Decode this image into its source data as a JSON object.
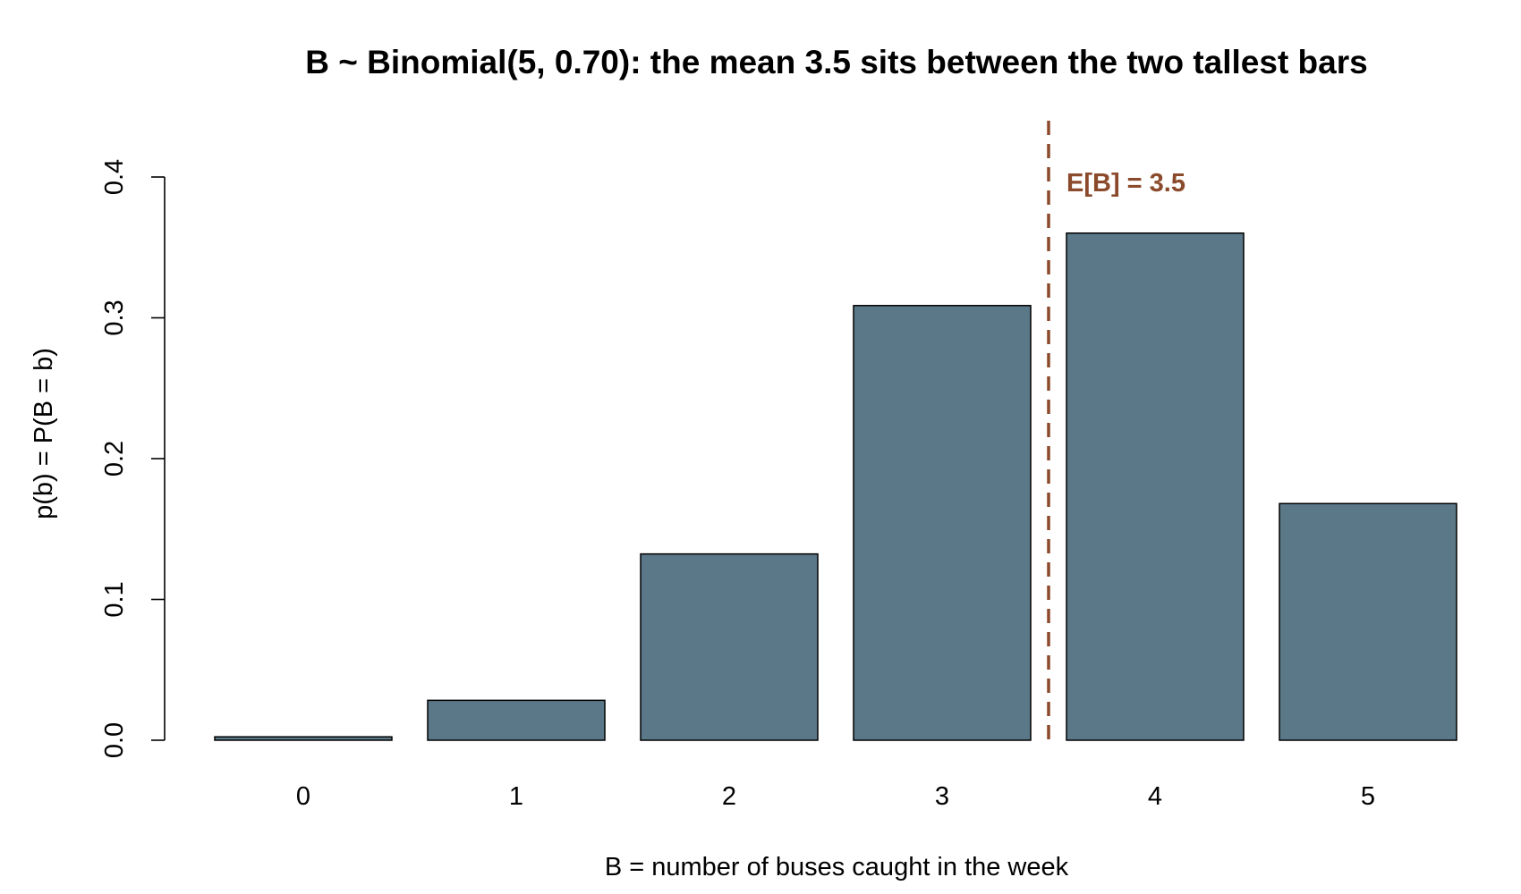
{
  "chart_data": {
    "type": "bar",
    "title": "B ~ Binomial(5, 0.70): the mean 3.5 sits between the two tallest bars",
    "xlabel": "B = number of buses caught in the week",
    "ylabel": "p(b) = P(B = b)",
    "categories": [
      "0",
      "1",
      "2",
      "3",
      "4",
      "5"
    ],
    "values": [
      0.00243,
      0.02835,
      0.1323,
      0.3087,
      0.36015,
      0.16807
    ],
    "ylim": [
      0,
      0.4
    ],
    "yticks": [
      "0.0",
      "0.1",
      "0.2",
      "0.3",
      "0.4"
    ],
    "grid": false,
    "legend": "none",
    "bar_color": "#5b7889",
    "annotation": {
      "label": "E[B] = 3.5",
      "x": 3.5,
      "color": "#8b4a2b",
      "style": "dashed vertical line"
    }
  }
}
